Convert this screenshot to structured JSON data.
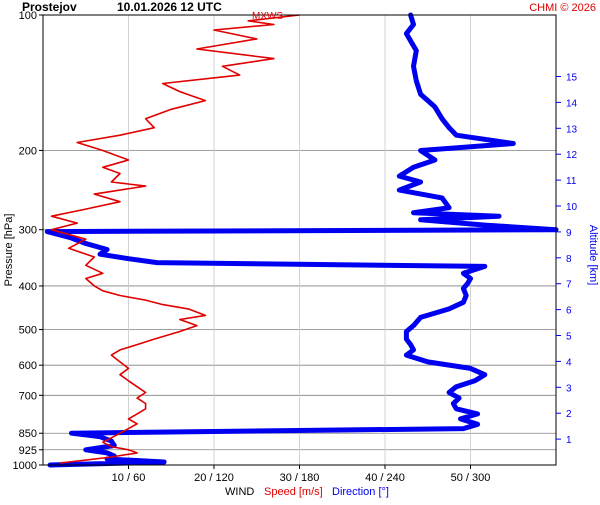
{
  "header": {
    "station": "Prostejov",
    "datetime": "10.01.2026 12 UTC",
    "copyright": "CHMI © 2026",
    "series_tag": "MXWS"
  },
  "colors": {
    "speed": "#e00000",
    "direction": "#0000f0",
    "grid": "#c8c8c8",
    "grid_major": "#808080",
    "axis": "#000000",
    "copyright": "#e00000"
  },
  "chart_data": {
    "type": "line",
    "y_axis": {
      "label": "Pressure [hPa]",
      "scale": "log",
      "range": [
        1000,
        100
      ],
      "ticks": [
        100,
        200,
        300,
        400,
        500,
        600,
        700,
        850,
        925,
        1000
      ]
    },
    "right_axis": {
      "label": "Altitude [km]",
      "ticks": [
        1,
        2,
        3,
        4,
        5,
        6,
        7,
        8,
        9,
        10,
        11,
        12,
        13,
        14,
        15
      ]
    },
    "x_axis": {
      "title": "WIND",
      "speed_label": "Speed [m/s]",
      "direction_label": "Direction [°]",
      "ticks": [
        {
          "speed": 10,
          "direction": 60,
          "label": "10 / 60"
        },
        {
          "speed": 20,
          "direction": 120,
          "label": "20 / 120"
        },
        {
          "speed": 30,
          "direction": 180,
          "label": "30 / 180"
        },
        {
          "speed": 40,
          "direction": 240,
          "label": "40 / 240"
        },
        {
          "speed": 50,
          "direction": 300,
          "label": "50 / 300"
        }
      ],
      "speed_range": [
        0,
        60
      ],
      "direction_range": [
        0,
        360
      ]
    },
    "series": [
      {
        "name": "Speed [m/s]",
        "unit": "m/s",
        "points": [
          [
            990,
            2
          ],
          [
            975,
            5
          ],
          [
            960,
            8
          ],
          [
            940,
            11
          ],
          [
            925,
            10
          ],
          [
            910,
            8
          ],
          [
            890,
            7
          ],
          [
            870,
            8
          ],
          [
            850,
            9
          ],
          [
            830,
            10
          ],
          [
            810,
            11
          ],
          [
            790,
            10
          ],
          [
            770,
            11
          ],
          [
            750,
            12
          ],
          [
            730,
            12
          ],
          [
            710,
            11
          ],
          [
            690,
            12
          ],
          [
            670,
            11
          ],
          [
            650,
            10
          ],
          [
            630,
            9
          ],
          [
            610,
            10
          ],
          [
            590,
            9
          ],
          [
            570,
            8
          ],
          [
            555,
            9
          ],
          [
            540,
            11
          ],
          [
            525,
            13
          ],
          [
            505,
            16
          ],
          [
            490,
            18
          ],
          [
            475,
            16
          ],
          [
            465,
            19
          ],
          [
            450,
            17
          ],
          [
            440,
            14
          ],
          [
            430,
            12
          ],
          [
            420,
            9
          ],
          [
            410,
            7
          ],
          [
            400,
            6
          ],
          [
            385,
            5
          ],
          [
            375,
            7
          ],
          [
            360,
            5
          ],
          [
            345,
            6
          ],
          [
            330,
            3
          ],
          [
            315,
            5
          ],
          [
            300,
            1
          ],
          [
            290,
            4
          ],
          [
            280,
            1
          ],
          [
            270,
            5
          ],
          [
            260,
            9
          ],
          [
            250,
            6
          ],
          [
            240,
            12
          ],
          [
            235,
            8
          ],
          [
            225,
            9
          ],
          [
            218,
            7
          ],
          [
            210,
            10
          ],
          [
            200,
            7
          ],
          [
            192,
            4
          ],
          [
            185,
            9
          ],
          [
            178,
            13
          ],
          [
            170,
            12
          ],
          [
            162,
            15
          ],
          [
            155,
            19
          ],
          [
            148,
            16
          ],
          [
            142,
            14
          ],
          [
            136,
            23
          ],
          [
            130,
            21
          ],
          [
            125,
            27
          ],
          [
            119,
            18
          ],
          [
            113,
            25
          ],
          [
            108,
            20
          ],
          [
            105,
            27
          ],
          [
            103,
            24
          ],
          [
            100,
            30
          ]
        ]
      },
      {
        "name": "Direction [°]",
        "unit": "deg",
        "points": [
          [
            1000,
            5
          ],
          [
            985,
            85
          ],
          [
            970,
            45
          ],
          [
            955,
            50
          ],
          [
            940,
            45
          ],
          [
            925,
            30
          ],
          [
            905,
            50
          ],
          [
            885,
            48
          ],
          [
            865,
            40
          ],
          [
            850,
            20
          ],
          [
            830,
            295
          ],
          [
            812,
            305
          ],
          [
            790,
            293
          ],
          [
            770,
            305
          ],
          [
            750,
            290
          ],
          [
            730,
            288
          ],
          [
            710,
            292
          ],
          [
            690,
            285
          ],
          [
            670,
            290
          ],
          [
            650,
            303
          ],
          [
            630,
            310
          ],
          [
            610,
            300
          ],
          [
            590,
            270
          ],
          [
            570,
            255
          ],
          [
            555,
            260
          ],
          [
            540,
            258
          ],
          [
            525,
            255
          ],
          [
            505,
            255
          ],
          [
            490,
            260
          ],
          [
            470,
            265
          ],
          [
            450,
            285
          ],
          [
            435,
            295
          ],
          [
            420,
            297
          ],
          [
            405,
            295
          ],
          [
            395,
            298
          ],
          [
            385,
            300
          ],
          [
            375,
            295
          ],
          [
            362,
            310
          ],
          [
            355,
            80
          ],
          [
            348,
            60
          ],
          [
            340,
            40
          ],
          [
            332,
            45
          ],
          [
            322,
            30
          ],
          [
            313,
            20
          ],
          [
            303,
            3
          ],
          [
            300,
            360
          ],
          [
            293,
            310
          ],
          [
            285,
            265
          ],
          [
            280,
            320
          ],
          [
            275,
            260
          ],
          [
            268,
            285
          ],
          [
            255,
            280
          ],
          [
            245,
            250
          ],
          [
            235,
            265
          ],
          [
            228,
            250
          ],
          [
            218,
            260
          ],
          [
            210,
            275
          ],
          [
            200,
            265
          ],
          [
            193,
            330
          ],
          [
            185,
            290
          ],
          [
            178,
            285
          ],
          [
            170,
            280
          ],
          [
            160,
            275
          ],
          [
            150,
            265
          ],
          [
            140,
            262
          ],
          [
            130,
            260
          ],
          [
            120,
            262
          ],
          [
            110,
            255
          ],
          [
            105,
            260
          ],
          [
            100,
            258
          ]
        ]
      }
    ]
  }
}
